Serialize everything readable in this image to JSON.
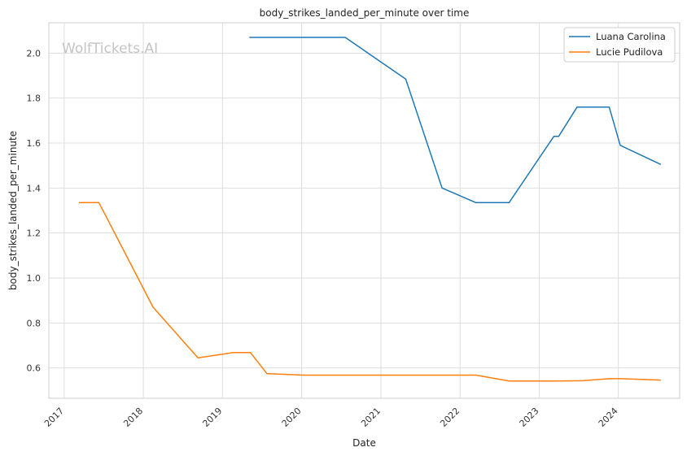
{
  "chart_data": {
    "type": "line",
    "title": "body_strikes_landed_per_minute over time",
    "xlabel": "Date",
    "ylabel": "body_strikes_landed_per_minute",
    "watermark": "WolfTickets.AI",
    "x_tick_labels": [
      "2017",
      "2018",
      "2019",
      "2020",
      "2021",
      "2022",
      "2023",
      "2024"
    ],
    "y_tick_labels": [
      "0.6",
      "0.8",
      "1.0",
      "1.2",
      "1.4",
      "1.6",
      "1.8",
      "2.0"
    ],
    "y_ticks": [
      0.6,
      0.8,
      1.0,
      1.2,
      1.4,
      1.6,
      1.8,
      2.0
    ],
    "xlim": [
      "2016-10-22",
      "2024-10-10"
    ],
    "ylim": [
      0.465,
      2.135
    ],
    "grid": true,
    "legend_position": "top-right",
    "series": [
      {
        "name": "Luana Carolina",
        "color": "#1f77b4",
        "points": [
          [
            "2019-05-05",
            2.07
          ],
          [
            "2020-07-20",
            2.07
          ],
          [
            "2021-04-25",
            1.885
          ],
          [
            "2021-10-10",
            1.4
          ],
          [
            "2022-03-15",
            1.335
          ],
          [
            "2022-08-15",
            1.335
          ],
          [
            "2023-03-10",
            1.63
          ],
          [
            "2023-04-01",
            1.63
          ],
          [
            "2023-06-25",
            1.76
          ],
          [
            "2023-11-20",
            1.76
          ],
          [
            "2024-01-10",
            1.59
          ],
          [
            "2024-07-15",
            1.505
          ]
        ]
      },
      {
        "name": "Lucie Pudilova",
        "color": "#ff7f0e",
        "points": [
          [
            "2017-03-10",
            1.335
          ],
          [
            "2017-06-10",
            1.335
          ],
          [
            "2018-02-15",
            0.87
          ],
          [
            "2018-09-10",
            0.645
          ],
          [
            "2019-02-20",
            0.668
          ],
          [
            "2019-05-10",
            0.668
          ],
          [
            "2019-07-25",
            0.575
          ],
          [
            "2020-01-10",
            0.568
          ],
          [
            "2022-03-15",
            0.568
          ],
          [
            "2022-08-15",
            0.542
          ],
          [
            "2023-03-10",
            0.542
          ],
          [
            "2023-07-20",
            0.543
          ],
          [
            "2023-11-20",
            0.552
          ],
          [
            "2024-01-10",
            0.552
          ],
          [
            "2024-07-15",
            0.546
          ]
        ]
      }
    ]
  }
}
